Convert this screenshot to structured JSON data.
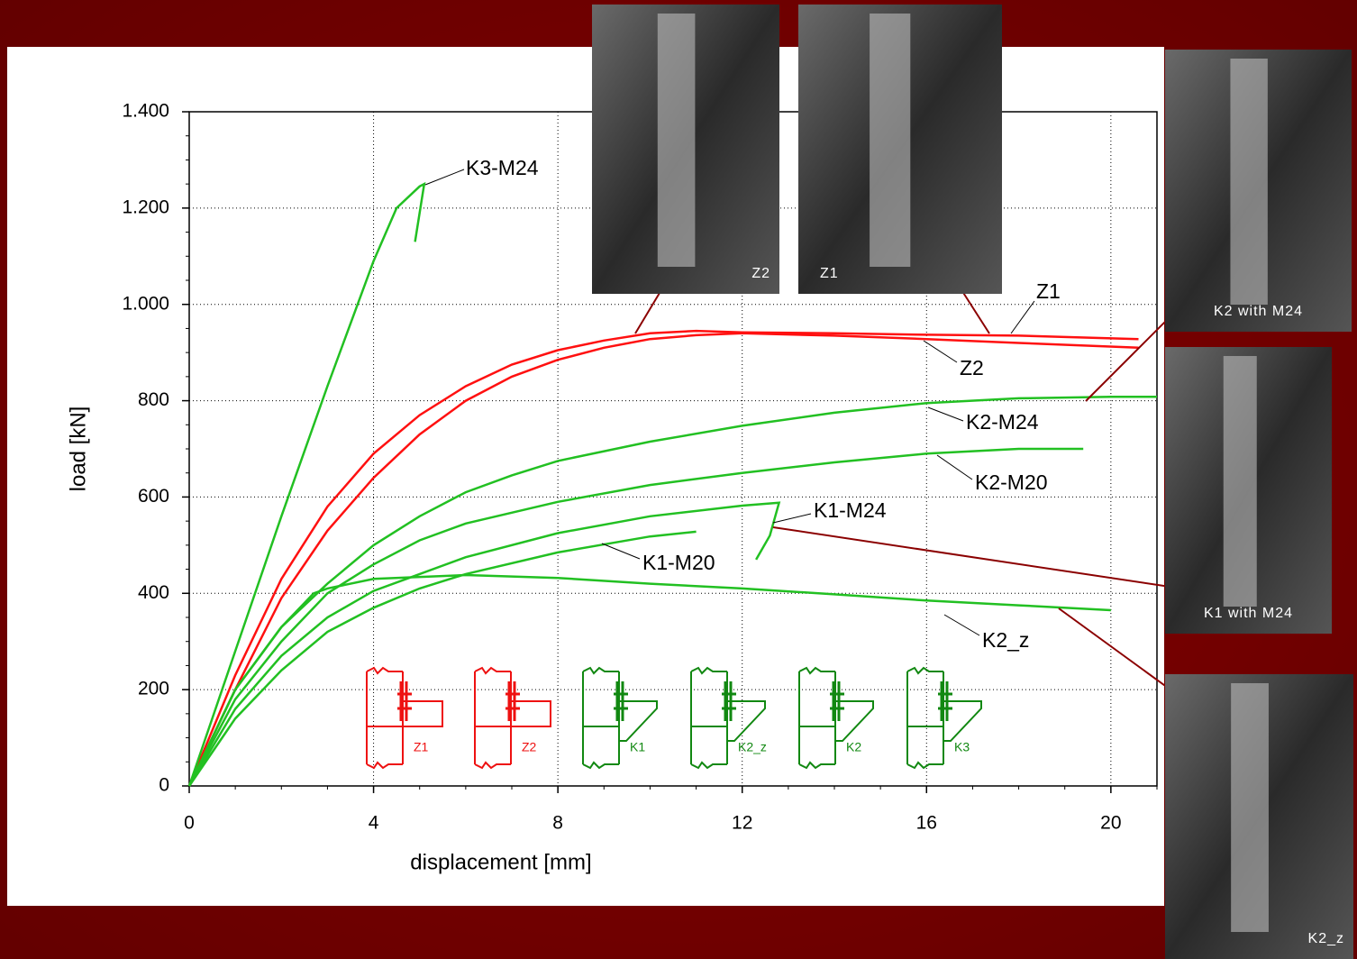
{
  "chart_data": {
    "type": "line",
    "xlabel": "displacement [mm]",
    "ylabel": "load [kN]",
    "xlim": [
      0,
      21
    ],
    "ylim": [
      0,
      1400
    ],
    "xticks": [
      0,
      4,
      8,
      12,
      16,
      20
    ],
    "yticks": [
      0,
      200,
      400,
      600,
      800,
      {
        "value": 1000,
        "label": "1.000"
      },
      {
        "value": 1200,
        "label": "1.200"
      },
      {
        "value": 1400,
        "label": "1.400"
      }
    ],
    "grid": true,
    "series": [
      {
        "name": "Z1",
        "color": "#ff1010",
        "x": [
          0,
          1,
          2,
          3,
          4,
          5,
          6,
          7,
          8,
          9,
          10,
          11,
          12,
          14,
          16,
          18,
          20.6
        ],
        "values": [
          0,
          230,
          430,
          580,
          690,
          770,
          830,
          875,
          905,
          925,
          940,
          945,
          942,
          940,
          937,
          935,
          928
        ]
      },
      {
        "name": "Z2",
        "color": "#ff1010",
        "x": [
          0,
          1,
          2,
          3,
          4,
          5,
          6,
          7,
          8,
          9,
          10,
          11,
          12,
          14,
          16,
          18,
          20.6
        ],
        "values": [
          0,
          200,
          390,
          530,
          640,
          730,
          800,
          850,
          885,
          910,
          928,
          936,
          940,
          935,
          928,
          920,
          910
        ]
      },
      {
        "name": "K3-M24",
        "color": "#22c022",
        "x": [
          0,
          1,
          2,
          3,
          4,
          4.5,
          5,
          5.1,
          4.9
        ],
        "values": [
          0,
          280,
          560,
          830,
          1090,
          1200,
          1245,
          1250,
          1130
        ]
      },
      {
        "name": "K2-M24",
        "color": "#22c022",
        "x": [
          0,
          1,
          2,
          3,
          4,
          5,
          6,
          7,
          8,
          10,
          12,
          14,
          16,
          18,
          20,
          21
        ],
        "values": [
          0,
          200,
          330,
          420,
          500,
          560,
          610,
          645,
          675,
          715,
          748,
          775,
          795,
          805,
          808,
          808
        ]
      },
      {
        "name": "K2-M20",
        "color": "#22c022",
        "x": [
          0,
          1,
          2,
          3,
          4,
          5,
          6,
          8,
          10,
          12,
          14,
          16,
          18,
          19.4
        ],
        "values": [
          0,
          180,
          300,
          400,
          460,
          510,
          545,
          590,
          625,
          650,
          672,
          690,
          700,
          700
        ]
      },
      {
        "name": "K1-M24",
        "color": "#22c022",
        "x": [
          0,
          1,
          2,
          3,
          4,
          5,
          6,
          8,
          10,
          12,
          12.8,
          12.6,
          12.3
        ],
        "values": [
          0,
          160,
          270,
          350,
          405,
          440,
          475,
          525,
          560,
          582,
          588,
          520,
          470
        ]
      },
      {
        "name": "K1-M20",
        "color": "#22c022",
        "x": [
          0,
          1,
          2,
          3,
          4,
          5,
          6,
          8,
          10,
          11
        ],
        "values": [
          0,
          140,
          240,
          320,
          370,
          410,
          440,
          485,
          518,
          528
        ]
      },
      {
        "name": "K2_z",
        "color": "#22c022",
        "x": [
          0,
          1,
          2,
          2.7,
          3,
          4,
          6,
          8,
          10,
          12,
          14,
          16,
          18,
          20
        ],
        "values": [
          0,
          200,
          330,
          400,
          410,
          430,
          438,
          432,
          420,
          410,
          398,
          385,
          375,
          365
        ]
      }
    ],
    "details": [
      {
        "label": "Z1",
        "color": "#ee1111"
      },
      {
        "label": "Z2",
        "color": "#ee1111"
      },
      {
        "label": "K1",
        "color": "#118811"
      },
      {
        "label": "K2_z",
        "color": "#118811"
      },
      {
        "label": "K2",
        "color": "#118811"
      },
      {
        "label": "K3",
        "color": "#118811"
      }
    ],
    "photos": [
      {
        "caption": "Z2"
      },
      {
        "caption": "Z1"
      },
      {
        "caption": "K2 with M24"
      },
      {
        "caption": "K1 with M24"
      },
      {
        "caption": "K2_z"
      }
    ]
  }
}
